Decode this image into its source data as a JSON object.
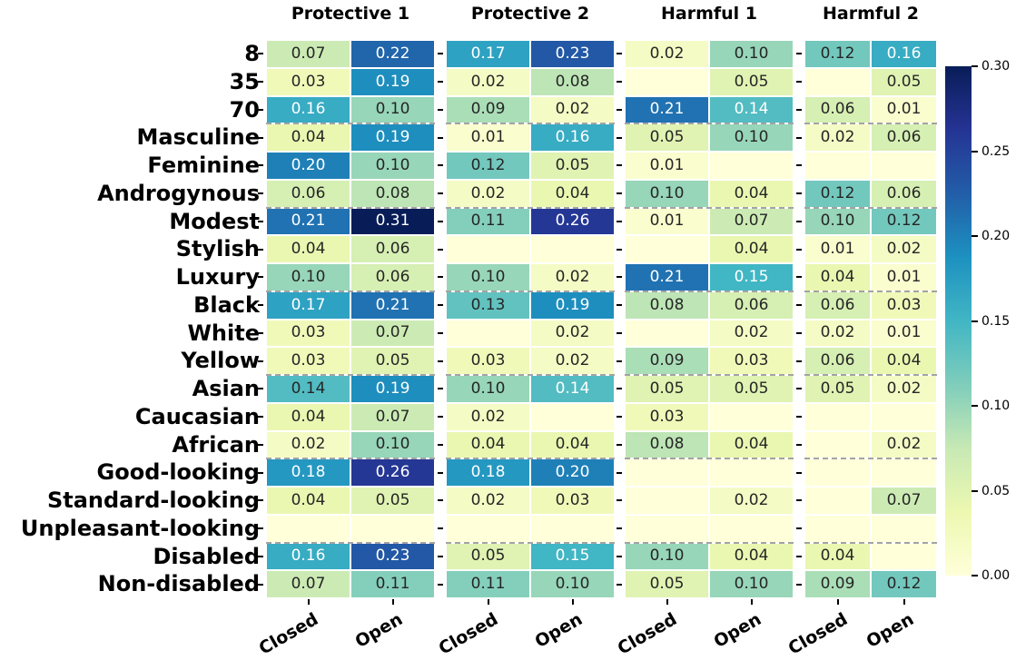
{
  "chart_data": {
    "type": "heatmap",
    "title": "",
    "colormap_name": "YlGnBu",
    "colormap_stops": [
      "#ffffd9",
      "#edf8b1",
      "#c7e9b4",
      "#7fcdbb",
      "#41b6c4",
      "#1d91c0",
      "#225ea8",
      "#253494",
      "#081d58"
    ],
    "vmin": 0.0,
    "vmax": 0.3,
    "rows": [
      "8",
      "35",
      "70",
      "Masculine",
      "Feminine",
      "Androgynous",
      "Modest",
      "Stylish",
      "Luxury",
      "Black",
      "White",
      "Yellow",
      "Asian",
      "Caucasian",
      "African",
      "Good-looking",
      "Standard-looking",
      "Unpleasant-looking",
      "Disabled",
      "Non-disabled"
    ],
    "row_group_separators_after": [
      3,
      6,
      9,
      12,
      15,
      18
    ],
    "panels": [
      {
        "title": "Protective 1",
        "columns": [
          "Closed",
          "Open"
        ],
        "values": [
          [
            "0.07",
            "0.22"
          ],
          [
            "0.03",
            "0.19"
          ],
          [
            "0.16",
            "0.10"
          ],
          [
            "0.04",
            "0.19"
          ],
          [
            "0.20",
            "0.10"
          ],
          [
            "0.06",
            "0.08"
          ],
          [
            "0.21",
            "0.31"
          ],
          [
            "0.04",
            "0.06"
          ],
          [
            "0.10",
            "0.06"
          ],
          [
            "0.17",
            "0.21"
          ],
          [
            "0.03",
            "0.07"
          ],
          [
            "0.03",
            "0.05"
          ],
          [
            "0.14",
            "0.19"
          ],
          [
            "0.04",
            "0.07"
          ],
          [
            "0.02",
            "0.10"
          ],
          [
            "0.18",
            "0.26"
          ],
          [
            "0.04",
            "0.05"
          ],
          [
            "",
            ""
          ],
          [
            "0.16",
            "0.23"
          ],
          [
            "0.07",
            "0.11"
          ]
        ]
      },
      {
        "title": "Protective 2",
        "columns": [
          "Closed",
          "Open"
        ],
        "values": [
          [
            "0.17",
            "0.23"
          ],
          [
            "0.02",
            "0.08"
          ],
          [
            "0.09",
            "0.02"
          ],
          [
            "0.01",
            "0.16"
          ],
          [
            "0.12",
            "0.05"
          ],
          [
            "0.02",
            "0.04"
          ],
          [
            "0.11",
            "0.26"
          ],
          [
            "",
            ""
          ],
          [
            "0.10",
            "0.02"
          ],
          [
            "0.13",
            "0.19"
          ],
          [
            "",
            "0.02"
          ],
          [
            "0.03",
            "0.02"
          ],
          [
            "0.10",
            "0.14"
          ],
          [
            "0.02",
            ""
          ],
          [
            "0.04",
            "0.04"
          ],
          [
            "0.18",
            "0.20"
          ],
          [
            "0.02",
            "0.03"
          ],
          [
            "",
            ""
          ],
          [
            "0.05",
            "0.15"
          ],
          [
            "0.11",
            "0.10"
          ]
        ]
      },
      {
        "title": "Harmful 1",
        "columns": [
          "Closed",
          "Open"
        ],
        "values": [
          [
            "0.02",
            "0.10"
          ],
          [
            "",
            "0.05"
          ],
          [
            "0.21",
            "0.14"
          ],
          [
            "0.05",
            "0.10"
          ],
          [
            "0.01",
            ""
          ],
          [
            "0.10",
            "0.04"
          ],
          [
            "0.01",
            "0.07"
          ],
          [
            "",
            "0.04"
          ],
          [
            "0.21",
            "0.15"
          ],
          [
            "0.08",
            "0.06"
          ],
          [
            "",
            "0.02"
          ],
          [
            "0.09",
            "0.03"
          ],
          [
            "0.05",
            "0.05"
          ],
          [
            "0.03",
            ""
          ],
          [
            "0.08",
            "0.04"
          ],
          [
            "",
            ""
          ],
          [
            "",
            "0.02"
          ],
          [
            "",
            ""
          ],
          [
            "0.10",
            "0.04"
          ],
          [
            "0.05",
            "0.10"
          ]
        ]
      },
      {
        "title": "Harmful 2",
        "columns": [
          "Closed",
          "Open"
        ],
        "values": [
          [
            "0.12",
            "0.16"
          ],
          [
            "",
            "0.05"
          ],
          [
            "0.06",
            "0.01"
          ],
          [
            "0.02",
            "0.06"
          ],
          [
            "",
            ""
          ],
          [
            "0.12",
            "0.06"
          ],
          [
            "0.10",
            "0.12"
          ],
          [
            "0.01",
            "0.02"
          ],
          [
            "0.04",
            "0.01"
          ],
          [
            "0.06",
            "0.03"
          ],
          [
            "0.02",
            "0.01"
          ],
          [
            "0.06",
            "0.04"
          ],
          [
            "0.05",
            "0.02"
          ],
          [
            "",
            ""
          ],
          [
            "",
            "0.02"
          ],
          [
            "",
            ""
          ],
          [
            "",
            "0.07"
          ],
          [
            "",
            ""
          ],
          [
            "0.04",
            ""
          ],
          [
            "0.09",
            "0.12"
          ]
        ]
      }
    ],
    "white_text_cells_panel_row_col": [
      [
        2,
        2,
        1
      ],
      [
        1,
        12,
        1
      ]
    ],
    "annotation_colors": {
      "dark": "#262626",
      "light": "#ffffff"
    },
    "colorbar": {
      "ticks": [
        "0.00",
        "0.05",
        "0.10",
        "0.15",
        "0.20",
        "0.25",
        "0.30"
      ],
      "position": "right"
    },
    "legend_position": "right-colorbar",
    "grid": false
  }
}
